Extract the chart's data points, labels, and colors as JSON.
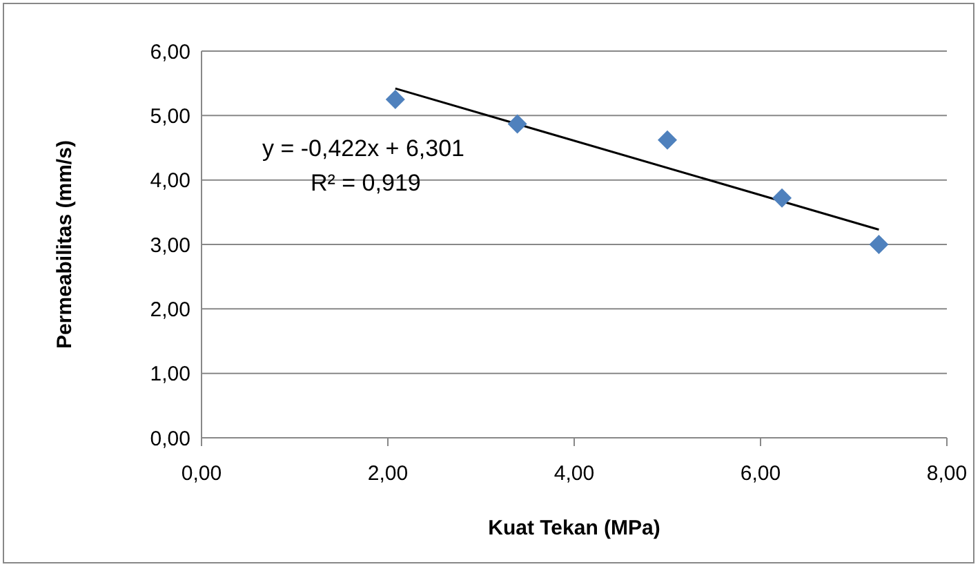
{
  "chart_data": {
    "type": "scatter",
    "xlabel": "Kuat Tekan (MPa)",
    "ylabel": "Permeabilitas (mm/s)",
    "x": [
      2.08,
      3.39,
      5.0,
      6.23,
      7.27
    ],
    "series": [
      {
        "color": "#4f81bd",
        "marker": "diamond",
        "values": [
          5.25,
          4.87,
          4.62,
          3.72,
          3.0
        ]
      },
      {
        "type": "line",
        "color": "#000000",
        "marker": "none",
        "x": [
          2.08,
          7.27
        ],
        "values": [
          5.42,
          3.23
        ]
      }
    ],
    "annotations": [
      "y = -0,422x + 6,301",
      "R² = 0,919"
    ],
    "xlim": [
      0,
      8
    ],
    "xticks": [
      {
        "value": 0,
        "label": "0,00"
      },
      {
        "value": 2,
        "label": "2,00"
      },
      {
        "value": 4,
        "label": "4,00"
      },
      {
        "value": 6,
        "label": "6,00"
      },
      {
        "value": 8,
        "label": "8,00"
      }
    ],
    "ylim": [
      0,
      6
    ],
    "yticks": [
      {
        "value": 0,
        "label": "0,00"
      },
      {
        "value": 1,
        "label": "1,00"
      },
      {
        "value": 2,
        "label": "2,00"
      },
      {
        "value": 3,
        "label": "3,00"
      },
      {
        "value": 4,
        "label": "4,00"
      },
      {
        "value": 5,
        "label": "5,00"
      },
      {
        "value": 6,
        "label": "6,00"
      }
    ],
    "grid": "y",
    "legend": false
  }
}
